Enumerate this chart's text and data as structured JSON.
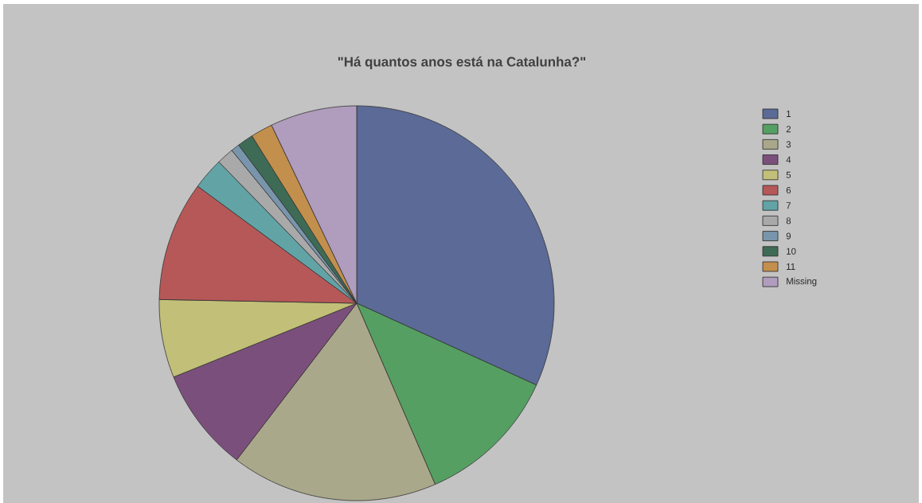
{
  "chart_data": {
    "type": "pie",
    "title": "\"Há quantos anos está na Catalunha?\"",
    "categories": [
      "1",
      "2",
      "3",
      "4",
      "5",
      "6",
      "7",
      "8",
      "9",
      "10",
      "11",
      "Missing"
    ],
    "values": [
      31.8,
      11.7,
      16.9,
      8.5,
      6.4,
      9.8,
      2.6,
      1.4,
      0.7,
      1.3,
      1.8,
      7.1
    ],
    "colors": [
      "#5b6a96",
      "#559f62",
      "#aaa88a",
      "#7b4f7c",
      "#c2bf78",
      "#b65858",
      "#62a3a6",
      "#a9a9a9",
      "#7895ac",
      "#3e6b55",
      "#c38f4c",
      "#b09cbc"
    ],
    "legend": "top right"
  }
}
